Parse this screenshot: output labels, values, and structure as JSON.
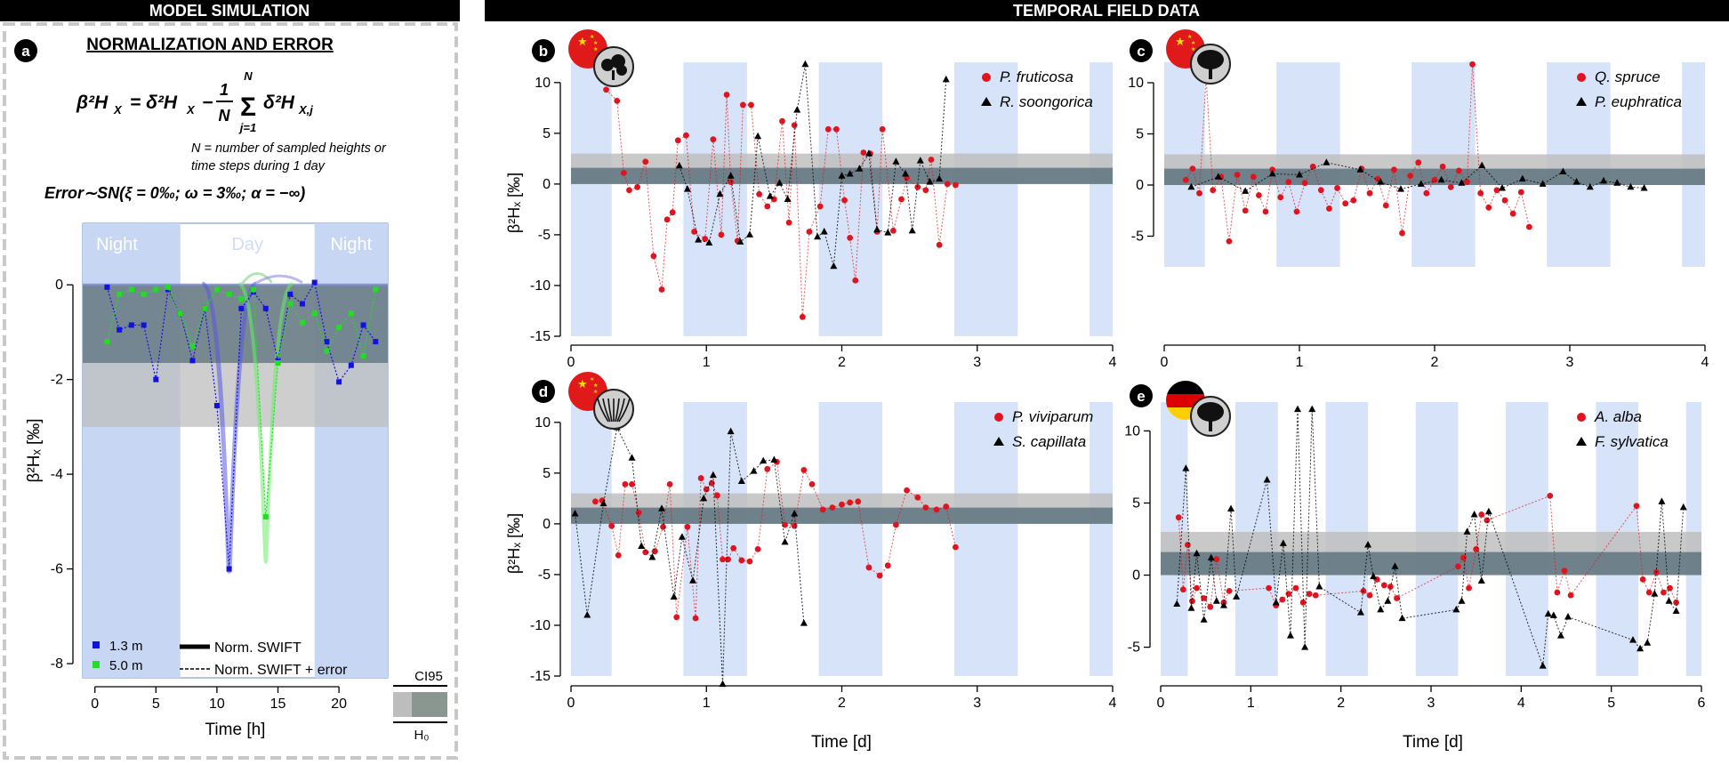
{
  "headers": {
    "left": "MODEL SIMULATION",
    "right": "TEMPORAL FIELD DATA"
  },
  "panel_a": {
    "letter": "a",
    "title": "NORMALIZATION AND ERROR",
    "formula_lhs": "β²H",
    "formula_rhs1": "= δ²H",
    "formula_frac_num": "1",
    "formula_frac_den": "N",
    "formula_sum_top": "N",
    "formula_sum_bottom": "j=1",
    "formula_rhs2": "δ²H",
    "formula_sub_x": "X",
    "formula_sub_xj": "X,j",
    "note_line1": "N = number of sampled heights or",
    "note_line2": "time steps during 1 day",
    "error_formula": "Error∼SN(ξ = 0‰;  ω = 3‰;  α = −∞)",
    "night_left": "Night",
    "day": "Day",
    "night_right": "Night",
    "ylabel": "β²Hₓ [‰]",
    "xlabel": "Time [h]",
    "legend_1_3": "1.3 m",
    "legend_5_0": "5.0 m",
    "legend_swift": "Norm. SWIFT",
    "legend_swift_err": "Norm. SWIFT + error",
    "ci95": "CI95",
    "h0": "H₀"
  },
  "panels": {
    "b": {
      "letter": "b",
      "species1": "P. fruticosa",
      "species2": "R. soongorica",
      "ylabel": "β²Hₓ [‰]"
    },
    "c": {
      "letter": "c",
      "species1": "Q. spruce",
      "species2": "P. euphratica"
    },
    "d": {
      "letter": "d",
      "species1": "P. viviparum",
      "species2": "S. capillata",
      "ylabel": "β²Hₓ [‰]",
      "xlabel": "Time [d]"
    },
    "e": {
      "letter": "e",
      "species1": "A. alba",
      "species2": "F. sylvatica",
      "xlabel": "Time [d]"
    }
  },
  "colors": {
    "night_band": "#d6e3f8",
    "ci95_band": "#bdbdbd",
    "h0_band": "#5f7580",
    "red": "#e0141e",
    "black": "#000000",
    "blue": "#1212e0",
    "green": "#22dd22"
  },
  "chart_data": [
    {
      "id": "a",
      "type": "line",
      "xlabel": "Time [h]",
      "ylabel": "β²Hₓ [‰]",
      "xlim": [
        -1,
        24
      ],
      "ylim": [
        -8.3,
        1.3
      ],
      "xticks": [
        0,
        5,
        10,
        15,
        20
      ],
      "yticks": [
        0,
        -2,
        -4,
        -6,
        -8
      ],
      "night_bands": [
        [
          -1,
          7
        ],
        [
          18,
          24
        ]
      ],
      "ci95_band": [
        -3,
        0
      ],
      "h0_band": [
        -1.65,
        0
      ],
      "series": [
        {
          "name": "1.3 m",
          "x": [
            1,
            2,
            3,
            4,
            5,
            6,
            7,
            8,
            9,
            10,
            11,
            12,
            13,
            14,
            15,
            16,
            17,
            18,
            19,
            20,
            21,
            22,
            23
          ],
          "y": [
            -0.05,
            -0.95,
            -0.85,
            -0.85,
            -2.0,
            -0.1,
            -0.6,
            -1.6,
            -0.5,
            -2.55,
            -6.0,
            -0.5,
            -0.15,
            -0.5,
            -1.6,
            -0.2,
            -0.4,
            0.05,
            -1.2,
            -2.05,
            -1.7,
            -0.85,
            -1.2
          ]
        },
        {
          "name": "5.0 m",
          "x": [
            1,
            2,
            3,
            4,
            5,
            6,
            7,
            8,
            9,
            10,
            11,
            12,
            13,
            14,
            15,
            16,
            17,
            18,
            19,
            20,
            21,
            22,
            23
          ],
          "y": [
            -1.2,
            -0.2,
            -0.1,
            -0.2,
            -0.1,
            -0.05,
            -0.6,
            -1.3,
            -0.5,
            -0.1,
            -0.2,
            -0.3,
            -0.1,
            -4.9,
            -1.65,
            -0.4,
            -0.8,
            -0.6,
            -1.4,
            -0.9,
            -0.6,
            -1.5,
            -0.1
          ]
        }
      ]
    },
    {
      "id": "b",
      "type": "scatter",
      "xlabel": "",
      "ylabel": "β²Hₓ [‰]",
      "xlim": [
        0,
        4
      ],
      "ylim": [
        -15,
        12
      ],
      "xticks": [
        0,
        1,
        2,
        3,
        4
      ],
      "yticks": [
        10,
        5,
        0,
        -5,
        -10,
        -15
      ],
      "night_bands": [
        [
          0,
          0.3
        ],
        [
          0.83,
          1.3
        ],
        [
          1.83,
          2.3
        ],
        [
          2.83,
          3.3
        ],
        [
          3.83,
          4
        ]
      ],
      "ci95_band": [
        0,
        3
      ],
      "h0_band": [
        0,
        1.6
      ],
      "series": [
        {
          "name": "P. fruticosa",
          "x": [
            0.26,
            0.34,
            0.39,
            0.43,
            0.49,
            0.55,
            0.61,
            0.67,
            0.71,
            0.75,
            0.79,
            0.85,
            0.91,
            0.99,
            1.05,
            1.11,
            1.15,
            1.18,
            1.23,
            1.27,
            1.33,
            1.39,
            1.45,
            1.5,
            1.56,
            1.61,
            1.65,
            1.71,
            1.76,
            1.84,
            1.9,
            1.96,
            2.02,
            2.06,
            2.1,
            2.16,
            2.21,
            2.26,
            2.3,
            2.38,
            2.44,
            2.48,
            2.56,
            2.62,
            2.66,
            2.72,
            2.78,
            2.84
          ],
          "y": [
            9.3,
            8.2,
            1.1,
            -0.6,
            -0.3,
            2.2,
            -7.1,
            -10.4,
            -3.5,
            -2.8,
            4.3,
            4.8,
            -4.7,
            -5.4,
            4.4,
            -5.0,
            8.8,
            0.2,
            -5.6,
            7.8,
            7.8,
            -1.0,
            -2.2,
            -1.5,
            6.2,
            -3.8,
            5.8,
            -13.1,
            -4.7,
            -2.2,
            5.4,
            5.4,
            -1.6,
            -5.3,
            -9.5,
            3.1,
            3.0,
            -4.7,
            5.4,
            -4.6,
            -1.5,
            0.6,
            -0.3,
            -0.6,
            2.4,
            -6.0,
            0.0,
            -0.1
          ]
        },
        {
          "name": "R. soongorica",
          "x": [
            0.8,
            0.86,
            0.94,
            1.02,
            1.1,
            1.18,
            1.25,
            1.32,
            1.38,
            1.47,
            1.54,
            1.6,
            1.67,
            1.73,
            1.82,
            1.87,
            1.94,
            2.0,
            2.06,
            2.13,
            2.2,
            2.26,
            2.34,
            2.4,
            2.47,
            2.52,
            2.58,
            2.65,
            2.72,
            2.77
          ],
          "y": [
            1.8,
            -0.5,
            -5.5,
            -5.8,
            -1.0,
            0.8,
            -5.7,
            -5.0,
            4.7,
            -1.2,
            0.1,
            -1.5,
            7.3,
            11.8,
            -5.2,
            -4.7,
            -8.1,
            0.8,
            1.0,
            1.5,
            3.0,
            -4.5,
            -4.8,
            2.2,
            1.0,
            -4.6,
            2.3,
            0.2,
            0.5,
            10.3
          ]
        }
      ]
    },
    {
      "id": "c",
      "type": "scatter",
      "xlabel": "",
      "ylabel": "",
      "xlim": [
        0,
        4
      ],
      "ylim": [
        -8,
        12
      ],
      "xticks": [
        0,
        1,
        2,
        3,
        4
      ],
      "yticks": [
        10,
        5,
        0,
        -5
      ],
      "night_bands": [
        [
          0,
          0.3
        ],
        [
          0.83,
          1.3
        ],
        [
          1.83,
          2.3
        ],
        [
          2.83,
          3.3
        ],
        [
          3.83,
          4
        ]
      ],
      "ci95_band": [
        0,
        3
      ],
      "h0_band": [
        0,
        1.6
      ],
      "series": [
        {
          "name": "Q. spruce",
          "x": [
            0.16,
            0.21,
            0.26,
            0.31,
            0.36,
            0.42,
            0.48,
            0.54,
            0.6,
            0.66,
            0.7,
            0.75,
            0.8,
            0.86,
            0.92,
            0.98,
            1.04,
            1.1,
            1.16,
            1.22,
            1.28,
            1.34,
            1.4,
            1.46,
            1.52,
            1.58,
            1.64,
            1.7,
            1.76,
            1.82,
            1.88,
            1.94,
            2.0,
            2.06,
            2.12,
            2.18,
            2.24,
            2.28,
            2.34,
            2.4,
            2.46,
            2.52,
            2.58,
            2.64,
            2.7
          ],
          "y": [
            0.5,
            1.6,
            -0.8,
            10.5,
            -0.5,
            0.8,
            -5.5,
            1.0,
            -2.5,
            0.8,
            -1.0,
            -2.6,
            1.5,
            -1.2,
            0.3,
            -2.6,
            0.2,
            1.8,
            -0.5,
            -2.3,
            -0.3,
            -1.8,
            -1.5,
            1.6,
            -0.8,
            0.6,
            -2.0,
            1.5,
            -4.7,
            0.9,
            2.2,
            -0.8,
            0.5,
            1.8,
            -0.2,
            1.4,
            0.3,
            11.8,
            -0.8,
            -2.2,
            -0.5,
            -1.5,
            -2.8,
            -0.7,
            -4.1
          ]
        },
        {
          "name": "P. euphratica",
          "x": [
            0.2,
            0.4,
            0.6,
            0.8,
            1.0,
            1.2,
            1.45,
            1.6,
            1.75,
            1.9,
            2.05,
            2.2,
            2.35,
            2.5,
            2.65,
            2.8,
            2.95,
            3.05,
            3.15,
            3.25,
            3.35,
            3.45,
            3.55
          ],
          "y": [
            -0.2,
            0.8,
            -0.6,
            1.1,
            1.0,
            2.2,
            1.5,
            0.3,
            -0.4,
            0.1,
            0.5,
            0.2,
            1.9,
            -0.3,
            0.6,
            0.1,
            1.3,
            0.3,
            -0.2,
            0.4,
            0.2,
            -0.2,
            -0.3
          ]
        }
      ]
    },
    {
      "id": "d",
      "type": "scatter",
      "xlabel": "Time [d]",
      "ylabel": "β²Hₓ [‰]",
      "xlim": [
        0,
        4
      ],
      "ylim": [
        -15,
        12
      ],
      "xticks": [
        0,
        1,
        2,
        3,
        4
      ],
      "yticks": [
        10,
        5,
        0,
        -5,
        -10,
        -15
      ],
      "night_bands": [
        [
          0,
          0.3
        ],
        [
          0.83,
          1.3
        ],
        [
          1.83,
          2.3
        ],
        [
          2.83,
          3.3
        ],
        [
          3.83,
          4
        ]
      ],
      "ci95_band": [
        0,
        3
      ],
      "h0_band": [
        0,
        1.6
      ],
      "series": [
        {
          "name": "P. viviparum",
          "x": [
            0.18,
            0.23,
            0.3,
            0.35,
            0.4,
            0.45,
            0.5,
            0.55,
            0.62,
            0.68,
            0.73,
            0.78,
            0.86,
            0.92,
            0.96,
            1.0,
            1.04,
            1.08,
            1.12,
            1.16,
            1.2,
            1.26,
            1.32,
            1.38,
            1.45,
            1.52,
            1.58,
            1.65,
            1.72,
            1.78,
            1.86,
            1.93,
            2.0,
            2.06,
            2.12,
            2.2,
            2.28,
            2.34,
            2.4,
            2.48,
            2.56,
            2.62,
            2.7,
            2.77,
            2.84
          ],
          "y": [
            2.2,
            2.3,
            -0.2,
            -3.1,
            3.9,
            3.9,
            1.1,
            -2.8,
            -2.7,
            -0.3,
            3.9,
            -9.2,
            -0.3,
            -9.3,
            4.5,
            3.4,
            4.0,
            2.8,
            -3.5,
            -3.5,
            -2.4,
            -3.6,
            -3.7,
            -2.5,
            5.4,
            6.1,
            -0.1,
            -0.2,
            5.3,
            3.9,
            1.4,
            1.6,
            1.9,
            2.1,
            2.2,
            -4.3,
            -5.1,
            -4.1,
            -0.1,
            3.3,
            2.6,
            1.6,
            1.4,
            1.7,
            -2.3
          ]
        },
        {
          "name": "S. capillata",
          "x": [
            0.03,
            0.12,
            0.24,
            0.34,
            0.45,
            0.52,
            0.6,
            0.67,
            0.76,
            0.82,
            0.9,
            0.98,
            1.05,
            1.12,
            1.18,
            1.26,
            1.35,
            1.42,
            1.5,
            1.58,
            1.65,
            1.72
          ],
          "y": [
            1.0,
            -9.0,
            2.0,
            9.5,
            6.5,
            -2.2,
            -3.3,
            1.5,
            -7.2,
            -1.3,
            -5.6,
            2.5,
            4.8,
            -15.8,
            9.1,
            4.2,
            5.2,
            6.2,
            6.3,
            -1.8,
            1.0,
            -9.8
          ]
        }
      ]
    },
    {
      "id": "e",
      "type": "scatter",
      "xlabel": "Time [d]",
      "ylabel": "",
      "xlim": [
        0,
        6
      ],
      "ylim": [
        -7,
        12
      ],
      "xticks": [
        0,
        1,
        2,
        3,
        4,
        5,
        6
      ],
      "yticks": [
        10,
        5,
        0,
        -5
      ],
      "night_bands": [
        [
          0,
          0.3
        ],
        [
          0.83,
          1.3
        ],
        [
          1.83,
          2.3
        ],
        [
          2.83,
          3.3
        ],
        [
          3.83,
          4.3
        ],
        [
          4.83,
          5.3
        ],
        [
          5.83,
          6
        ]
      ],
      "ci95_band": [
        0,
        3
      ],
      "h0_band": [
        0,
        1.6
      ],
      "series": [
        {
          "name": "A. alba",
          "x": [
            0.2,
            0.25,
            0.3,
            0.35,
            0.4,
            0.48,
            0.55,
            0.62,
            0.7,
            0.76,
            1.2,
            1.28,
            1.35,
            1.42,
            1.5,
            1.58,
            1.65,
            1.72,
            2.25,
            2.32,
            2.4,
            2.48,
            2.55,
            2.62,
            3.3,
            3.36,
            3.42,
            3.5,
            3.56,
            3.62,
            4.32,
            4.4,
            4.48,
            4.55,
            5.28,
            5.35,
            5.42,
            5.5,
            5.58,
            5.65,
            5.72
          ],
          "y": [
            4.0,
            -1.0,
            2.1,
            -1.8,
            -0.9,
            -1.6,
            -2.2,
            1.1,
            -1.9,
            -1.1,
            -0.9,
            -2.1,
            -1.7,
            -1.3,
            -0.9,
            -1.9,
            -1.3,
            -1.4,
            -1.1,
            -1.4,
            -0.3,
            -0.7,
            -0.8,
            -1.6,
            0.6,
            1.2,
            -0.9,
            1.8,
            4.2,
            3.8,
            5.5,
            -1.2,
            0.3,
            -1.4,
            4.8,
            -0.3,
            -1.2,
            0.2,
            -1.2,
            -0.9,
            -1.9
          ]
        },
        {
          "name": "F. sylvatica",
          "x": [
            0.18,
            0.28,
            0.34,
            0.4,
            0.48,
            0.56,
            0.62,
            0.7,
            0.78,
            0.84,
            1.18,
            1.28,
            1.36,
            1.44,
            1.52,
            1.6,
            1.68,
            1.76,
            2.22,
            2.3,
            2.36,
            2.44,
            2.52,
            2.6,
            2.68,
            3.28,
            3.34,
            3.4,
            3.48,
            3.56,
            3.64,
            4.24,
            4.3,
            4.36,
            4.44,
            4.52,
            5.24,
            5.32,
            5.4,
            5.48,
            5.56,
            5.64,
            5.72,
            5.8
          ],
          "y": [
            -2.0,
            7.4,
            -2.3,
            1.5,
            -3.1,
            1.2,
            -1.8,
            -2.1,
            4.6,
            -1.5,
            6.6,
            -1.9,
            2.2,
            -4.2,
            11.5,
            -5.0,
            11.5,
            -0.8,
            -2.6,
            2.1,
            -0.1,
            -2.4,
            -1.8,
            0.6,
            -3.0,
            -2.4,
            -1.8,
            3.0,
            4.2,
            -0.4,
            4.4,
            -6.3,
            -2.7,
            -2.8,
            -4.2,
            -2.9,
            -4.5,
            -5.1,
            -4.7,
            -1.3,
            5.1,
            -1.8,
            -2.5,
            4.7
          ]
        }
      ]
    }
  ]
}
